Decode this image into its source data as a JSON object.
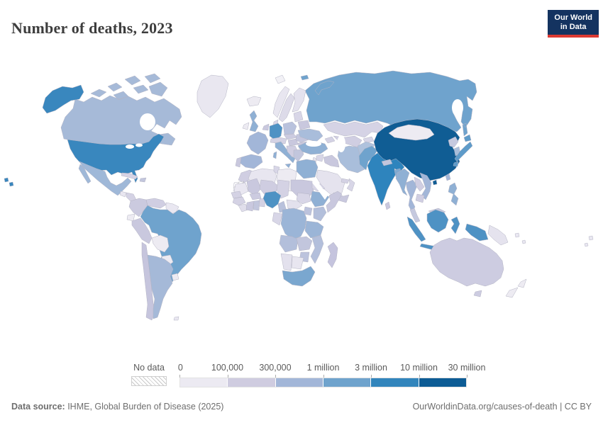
{
  "header": {
    "title": "Number of deaths, 2023",
    "logo_line1": "Our World",
    "logo_line2": "in Data"
  },
  "legend": {
    "no_data_label": "No data",
    "no_data_pattern": "diagonal-hatch",
    "tick_labels": [
      "0",
      "100,000",
      "300,000",
      "1 million",
      "3 million",
      "10 million",
      "30 million"
    ],
    "segment_colors": [
      "#ECEAF2",
      "#CFCCE0",
      "#A2B6D8",
      "#6FA3CD",
      "#3285BC",
      "#0D5C95"
    ]
  },
  "footer": {
    "source_label": "Data source:",
    "source_text": " IHME, Global Burden of Disease (2025)",
    "credit": "OurWorldinData.org/causes-of-death | CC BY"
  },
  "map": {
    "ocean_color": "#ffffff",
    "border_color": "#b4b4c4"
  },
  "chart_data": {
    "type": "heatmap",
    "subtype": "world-choropleth",
    "title": "Number of deaths, 2023",
    "source": "IHME, Global Burden of Disease (2025)",
    "legend_position": "bottom",
    "thresholds": [
      0,
      100000,
      300000,
      1000000,
      3000000,
      10000000,
      30000000
    ],
    "buckets": [
      "Under 100,000",
      "100,000–300,000",
      "300,000–1 million",
      "1–3 million",
      "3–10 million",
      "10–30 million",
      "No data"
    ],
    "countries": [
      {
        "id": "russia",
        "name": "Russia",
        "color": "#6FA3CD",
        "bucket": "1–3 million"
      },
      {
        "id": "canada",
        "name": "Canada",
        "color": "#A6BAD8",
        "bucket": "300,000–1 million"
      },
      {
        "id": "greenland",
        "name": "Greenland",
        "color": "#E9E7F0",
        "bucket": "Under 100,000"
      },
      {
        "id": "usa",
        "name": "United States",
        "color": "#3987BE",
        "bucket": "3–10 million"
      },
      {
        "id": "mexico",
        "name": "Mexico",
        "color": "#9FB8D8",
        "bucket": "300,000–1 million"
      },
      {
        "id": "guatemala",
        "name": "Guatemala",
        "color": "#E8E6F0",
        "bucket": "Under 100,000"
      },
      {
        "id": "honduras-nicaragua",
        "name": "Honduras & Nicaragua",
        "color": "#D4D2E4",
        "bucket": "Under 100,000"
      },
      {
        "id": "costa-rica-panama",
        "name": "Costa Rica & Panama",
        "color": "#E8E6F0",
        "bucket": "Under 100,000"
      },
      {
        "id": "cuba",
        "name": "Cuba",
        "color": "#D5D3E5",
        "bucket": "100,000–300,000"
      },
      {
        "id": "hispaniola",
        "name": "Haiti & Dominican Republic",
        "color": "#C2C6DD",
        "bucket": "100,000–300,000"
      },
      {
        "id": "colombia",
        "name": "Colombia",
        "color": "#CBCADF",
        "bucket": "100,000–300,000"
      },
      {
        "id": "venezuela",
        "name": "Venezuela",
        "color": "#D0CEE2",
        "bucket": "100,000–300,000"
      },
      {
        "id": "guyanas",
        "name": "Guyana & Suriname",
        "color": "#E9E7F1",
        "bucket": "Under 100,000"
      },
      {
        "id": "ecuador",
        "name": "Ecuador",
        "color": "#EDEBF2",
        "bucket": "Under 100,000"
      },
      {
        "id": "peru",
        "name": "Peru",
        "color": "#C9C8DE",
        "bucket": "100,000–300,000"
      },
      {
        "id": "brazil",
        "name": "Brazil",
        "color": "#6FA3CD",
        "bucket": "1–3 million"
      },
      {
        "id": "bolivia",
        "name": "Bolivia",
        "color": "#EDEBF2",
        "bucket": "Under 100,000"
      },
      {
        "id": "paraguay",
        "name": "Paraguay",
        "color": "#EDEBF2",
        "bucket": "Under 100,000"
      },
      {
        "id": "chile",
        "name": "Chile",
        "color": "#C6C5DD",
        "bucket": "100,000–300,000"
      },
      {
        "id": "argentina",
        "name": "Argentina",
        "color": "#A5B9D8",
        "bucket": "300,000–1 million"
      },
      {
        "id": "uruguay",
        "name": "Uruguay",
        "color": "#EDEBF2",
        "bucket": "Under 100,000"
      },
      {
        "id": "falkland-islands",
        "name": "Falkland Islands",
        "color": "#E9E7F1",
        "bucket": "Under 100,000"
      },
      {
        "id": "iceland",
        "name": "Iceland",
        "color": "#EDEBF2",
        "bucket": "Under 100,000"
      },
      {
        "id": "norway",
        "name": "Norway",
        "color": "#E8E6F0",
        "bucket": "Under 100,000"
      },
      {
        "id": "sweden",
        "name": "Sweden",
        "color": "#DDDBE9",
        "bucket": "Under 100,000"
      },
      {
        "id": "finland",
        "name": "Finland",
        "color": "#E4E2EE",
        "bucket": "Under 100,000"
      },
      {
        "id": "uk",
        "name": "United Kingdom",
        "color": "#8FB0D4",
        "bucket": "300,000–1 million"
      },
      {
        "id": "ireland",
        "name": "Ireland",
        "color": "#EDEBF2",
        "bucket": "Under 100,000"
      },
      {
        "id": "denmark",
        "name": "Denmark",
        "color": "#D8D6E7",
        "bucket": "Under 100,000"
      },
      {
        "id": "baltics",
        "name": "Baltic states",
        "color": "#D8D6E7",
        "bucket": "Under 100,000"
      },
      {
        "id": "belarus",
        "name": "Belarus",
        "color": "#C9C8DE",
        "bucket": "100,000–300,000"
      },
      {
        "id": "poland",
        "name": "Poland",
        "color": "#B9C2DD",
        "bucket": "300,000–1 million"
      },
      {
        "id": "germany",
        "name": "Germany",
        "color": "#4E92C4",
        "bucket": "1–3 million"
      },
      {
        "id": "benelux",
        "name": "Netherlands & Belgium",
        "color": "#C9C8DE",
        "bucket": "100,000–300,000"
      },
      {
        "id": "france",
        "name": "France",
        "color": "#A2B6D8",
        "bucket": "300,000–1 million"
      },
      {
        "id": "spain",
        "name": "Spain",
        "color": "#A2B6D8",
        "bucket": "300,000–1 million"
      },
      {
        "id": "portugal",
        "name": "Portugal",
        "color": "#C9C8DE",
        "bucket": "100,000–300,000"
      },
      {
        "id": "switzerland-austria",
        "name": "Switzerland & Austria",
        "color": "#D4D2E4",
        "bucket": "100,000–300,000"
      },
      {
        "id": "czechia-slovakia",
        "name": "Czechia & Slovakia",
        "color": "#CCCBE0",
        "bucket": "100,000–300,000"
      },
      {
        "id": "hungary",
        "name": "Hungary",
        "color": "#C9C8DE",
        "bucket": "100,000–300,000"
      },
      {
        "id": "italy",
        "name": "Italy",
        "color": "#8FB0D4",
        "bucket": "300,000–1 million"
      },
      {
        "id": "balkans",
        "name": "Western Balkans",
        "color": "#D0CEE2",
        "bucket": "100,000–300,000"
      },
      {
        "id": "romania",
        "name": "Romania",
        "color": "#C4C6DE",
        "bucket": "100,000–300,000"
      },
      {
        "id": "bulgaria",
        "name": "Bulgaria",
        "color": "#C9C8DE",
        "bucket": "100,000–300,000"
      },
      {
        "id": "greece",
        "name": "Greece",
        "color": "#C2C6DD",
        "bucket": "100,000–300,000"
      },
      {
        "id": "ukraine",
        "name": "Ukraine",
        "color": "#A9BDDB",
        "bucket": "300,000–1 million"
      },
      {
        "id": "svalbard",
        "name": "Svalbard",
        "color": "#F2F1F6",
        "bucket": "Under 100,000"
      },
      {
        "id": "kazakhstan",
        "name": "Kazakhstan",
        "color": "#D5D3E5",
        "bucket": "100,000–300,000"
      },
      {
        "id": "uzbekistan-turkmenistan",
        "name": "Uzbekistan & Turkmenistan",
        "color": "#D0CEE2",
        "bucket": "100,000–300,000"
      },
      {
        "id": "kyrgyzstan-tajikistan",
        "name": "Kyrgyzstan & Tajikistan",
        "color": "#D8D6E7",
        "bucket": "Under 100,000"
      },
      {
        "id": "turkey",
        "name": "Turkey",
        "color": "#8FB0D4",
        "bucket": "300,000–1 million"
      },
      {
        "id": "caucasus",
        "name": "Caucasus states",
        "color": "#D4D2E4",
        "bucket": "Under 100,000"
      },
      {
        "id": "syria",
        "name": "Syria",
        "color": "#D8D6E7",
        "bucket": "100,000–300,000"
      },
      {
        "id": "levant",
        "name": "Israel & Jordan",
        "color": "#E5E3EE",
        "bucket": "Under 100,000"
      },
      {
        "id": "iraq",
        "name": "Iraq",
        "color": "#C9C8DE",
        "bucket": "100,000–300,000"
      },
      {
        "id": "iran",
        "name": "Iran",
        "color": "#A9BEDB",
        "bucket": "300,000–1 million"
      },
      {
        "id": "afghanistan",
        "name": "Afghanistan",
        "color": "#AFC2DD",
        "bucket": "100,000–300,000"
      },
      {
        "id": "pakistan",
        "name": "Pakistan",
        "color": "#6FA3CD",
        "bucket": "1–3 million"
      },
      {
        "id": "saudi-arabia",
        "name": "Saudi Arabia",
        "color": "#E5E3EE",
        "bucket": "100,000–300,000"
      },
      {
        "id": "yemen",
        "name": "Yemen",
        "color": "#C9C8DE",
        "bucket": "100,000–300,000"
      },
      {
        "id": "oman",
        "name": "Oman",
        "color": "#D8D6E7",
        "bucket": "Under 100,000"
      },
      {
        "id": "uae-qatar",
        "name": "United Arab Emirates & Qatar",
        "color": "#D4D2E4",
        "bucket": "Under 100,000"
      },
      {
        "id": "india",
        "name": "India",
        "color": "#2E84BD",
        "bucket": "3–10 million"
      },
      {
        "id": "china",
        "name": "China",
        "color": "#105D94",
        "bucket": "10–30 million"
      },
      {
        "id": "mongolia",
        "name": "Mongolia",
        "color": "#EDEBF2",
        "bucket": "Under 100,000"
      },
      {
        "id": "nepal",
        "name": "Nepal",
        "color": "#C2C6DD",
        "bucket": "100,000–300,000"
      },
      {
        "id": "bangladesh",
        "name": "Bangladesh",
        "color": "#7FA9D0",
        "bucket": "300,000–1 million"
      },
      {
        "id": "sri-lanka",
        "name": "Sri Lanka",
        "color": "#C9C8DE",
        "bucket": "100,000–300,000"
      },
      {
        "id": "taiwan",
        "name": "Taiwan",
        "color": "#A2B6D8",
        "bucket": "100,000–300,000"
      },
      {
        "id": "north-korea",
        "name": "North Korea",
        "color": "#C5C9DF",
        "bucket": "100,000–300,000"
      },
      {
        "id": "south-korea",
        "name": "South Korea",
        "color": "#A8BEDB",
        "bucket": "300,000–1 million"
      },
      {
        "id": "japan",
        "name": "Japan",
        "color": "#5E9BC9",
        "bucket": "1–3 million"
      },
      {
        "id": "myanmar",
        "name": "Myanmar",
        "color": "#8FB0D4",
        "bucket": "300,000–1 million"
      },
      {
        "id": "thailand",
        "name": "Thailand",
        "color": "#A2B6D8",
        "bucket": "300,000–1 million"
      },
      {
        "id": "laos",
        "name": "Laos",
        "color": "#D0CEE2",
        "bucket": "Under 100,000"
      },
      {
        "id": "vietnam",
        "name": "Vietnam",
        "color": "#A2B6D8",
        "bucket": "300,000–1 million"
      },
      {
        "id": "cambodia",
        "name": "Cambodia",
        "color": "#D0CEE2",
        "bucket": "100,000–300,000"
      },
      {
        "id": "malaysia",
        "name": "Malaysia",
        "color": "#C5C9DF",
        "bucket": "100,000–300,000"
      },
      {
        "id": "philippines",
        "name": "Philippines",
        "color": "#8FB0D4",
        "bucket": "300,000–1 million"
      },
      {
        "id": "indonesia",
        "name": "Indonesia",
        "color": "#4E92C4",
        "bucket": "1–3 million"
      },
      {
        "id": "timor",
        "name": "East Timor & Lesser Sunda",
        "color": "#D4D2E4",
        "bucket": "Under 100,000"
      },
      {
        "id": "papua-new-guinea",
        "name": "Papua New Guinea",
        "color": "#E5E3EE",
        "bucket": "Under 100,000"
      },
      {
        "id": "solomon-islands",
        "name": "Solomon Islands",
        "color": "#E9E7F1",
        "bucket": "Under 100,000"
      },
      {
        "id": "fiji",
        "name": "Fiji",
        "color": "#E9E7F1",
        "bucket": "Under 100,000"
      },
      {
        "id": "australia",
        "name": "Australia",
        "color": "#CDCCE1",
        "bucket": "100,000–300,000"
      },
      {
        "id": "new-zealand",
        "name": "New Zealand",
        "color": "#EDEBF2",
        "bucket": "Under 100,000"
      },
      {
        "id": "morocco",
        "name": "Morocco",
        "color": "#D0CEE2",
        "bucket": "100,000–300,000"
      },
      {
        "id": "western-sahara",
        "name": "Western Sahara",
        "color": "hatch",
        "bucket": "No data"
      },
      {
        "id": "algeria",
        "name": "Algeria",
        "color": "#E8E6F0",
        "bucket": "100,000–300,000"
      },
      {
        "id": "tunisia",
        "name": "Tunisia",
        "color": "#D8D6E7",
        "bucket": "Under 100,000"
      },
      {
        "id": "libya",
        "name": "Libya",
        "color": "#EDEBF2",
        "bucket": "Under 100,000"
      },
      {
        "id": "egypt",
        "name": "Egypt",
        "color": "#8FB0D4",
        "bucket": "300,000–1 million"
      },
      {
        "id": "mauritania",
        "name": "Mauritania",
        "color": "#E9E7F1",
        "bucket": "Under 100,000"
      },
      {
        "id": "mali",
        "name": "Mali",
        "color": "#C9C8DE",
        "bucket": "100,000–300,000"
      },
      {
        "id": "niger",
        "name": "Niger",
        "color": "#CFCDE1",
        "bucket": "100,000–300,000"
      },
      {
        "id": "chad",
        "name": "Chad",
        "color": "#D4D2E4",
        "bucket": "100,000–300,000"
      },
      {
        "id": "sudan",
        "name": "Sudan",
        "color": "#C9C8DE",
        "bucket": "100,000–300,000"
      },
      {
        "id": "eritrea-djibouti",
        "name": "Eritrea & Djibouti",
        "color": "#D8D6E7",
        "bucket": "Under 100,000"
      },
      {
        "id": "senegal-gambia",
        "name": "Senegal & Gambia",
        "color": "#D4D2E4",
        "bucket": "Under 100,000"
      },
      {
        "id": "guinea",
        "name": "Guinea",
        "color": "#D4D2E4",
        "bucket": "100,000–300,000"
      },
      {
        "id": "sierra-leone-liberia",
        "name": "Sierra Leone & Liberia",
        "color": "#E0DEEB",
        "bucket": "Under 100,000"
      },
      {
        "id": "cote-divoire",
        "name": "Côte d'Ivoire",
        "color": "#C9C8DE",
        "bucket": "100,000–300,000"
      },
      {
        "id": "ghana",
        "name": "Ghana",
        "color": "#C2C6DD",
        "bucket": "100,000–300,000"
      },
      {
        "id": "togo-benin",
        "name": "Togo & Benin",
        "color": "#D4D2E4",
        "bucket": "Under 100,000"
      },
      {
        "id": "burkina-faso",
        "name": "Burkina Faso",
        "color": "#CCCBE0",
        "bucket": "100,000–300,000"
      },
      {
        "id": "nigeria",
        "name": "Nigeria",
        "color": "#4E92C4",
        "bucket": "1–3 million"
      },
      {
        "id": "cameroon",
        "name": "Cameroon",
        "color": "#B8C1DC",
        "bucket": "100,000–300,000"
      },
      {
        "id": "central-african-republic",
        "name": "Central African Republic",
        "color": "#E3E1ED",
        "bucket": "Under 100,000"
      },
      {
        "id": "south-sudan",
        "name": "South Sudan",
        "color": "#D8D6E7",
        "bucket": "100,000–300,000"
      },
      {
        "id": "ethiopia",
        "name": "Ethiopia",
        "color": "#8FB0D4",
        "bucket": "300,000–1 million"
      },
      {
        "id": "somalia",
        "name": "Somalia",
        "color": "#C9C8DE",
        "bucket": "100,000–300,000"
      },
      {
        "id": "kenya",
        "name": "Kenya",
        "color": "#B3BFDB",
        "bucket": "300,000–1 million"
      },
      {
        "id": "uganda",
        "name": "Uganda",
        "color": "#BCC3DD",
        "bucket": "100,000–300,000"
      },
      {
        "id": "congo-gabon",
        "name": "Congo & Gabon",
        "color": "#D8D6E7",
        "bucket": "Under 100,000"
      },
      {
        "id": "drc",
        "name": "Democratic Republic of Congo",
        "color": "#9BB5D7",
        "bucket": "300,000–1 million"
      },
      {
        "id": "tanzania",
        "name": "Tanzania",
        "color": "#9BB5D7",
        "bucket": "300,000–1 million"
      },
      {
        "id": "angola",
        "name": "Angola",
        "color": "#B3BFDB",
        "bucket": "100,000–300,000"
      },
      {
        "id": "zambia",
        "name": "Zambia",
        "color": "#C2C6DD",
        "bucket": "100,000–300,000"
      },
      {
        "id": "mozambique",
        "name": "Mozambique",
        "color": "#B3BFDB",
        "bucket": "100,000–300,000"
      },
      {
        "id": "zimbabwe",
        "name": "Zimbabwe",
        "color": "#BCC3DD",
        "bucket": "100,000–300,000"
      },
      {
        "id": "namibia",
        "name": "Namibia",
        "color": "#E3E1ED",
        "bucket": "Under 100,000"
      },
      {
        "id": "botswana",
        "name": "Botswana",
        "color": "#E8E6F0",
        "bucket": "Under 100,000"
      },
      {
        "id": "south-africa",
        "name": "South Africa",
        "color": "#7AA7CF",
        "bucket": "300,000–1 million"
      },
      {
        "id": "madagascar",
        "name": "Madagascar",
        "color": "#C5C4DE",
        "bucket": "100,000–300,000"
      }
    ]
  }
}
